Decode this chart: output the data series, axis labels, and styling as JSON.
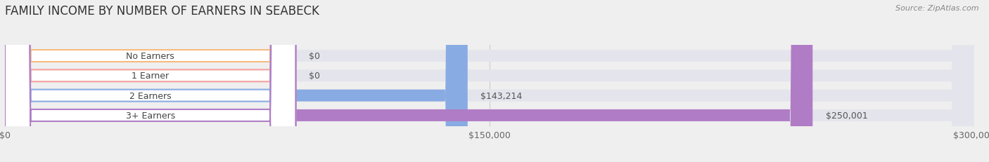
{
  "title": "FAMILY INCOME BY NUMBER OF EARNERS IN SEABECK",
  "source": "Source: ZipAtlas.com",
  "categories": [
    "No Earners",
    "1 Earner",
    "2 Earners",
    "3+ Earners"
  ],
  "values": [
    0,
    0,
    143214,
    250001
  ],
  "bar_colors": [
    "#f5bc80",
    "#f5a0a0",
    "#89abe3",
    "#b07cc6"
  ],
  "background_color": "#efefef",
  "bar_bg_color": "#e4e4ec",
  "xmax": 300000,
  "xtick_labels": [
    "$0",
    "$150,000",
    "$300,000"
  ],
  "value_labels": [
    "$0",
    "$0",
    "$143,214",
    "$250,001"
  ],
  "title_fontsize": 12,
  "source_fontsize": 8,
  "label_fontsize": 9,
  "tick_fontsize": 9
}
